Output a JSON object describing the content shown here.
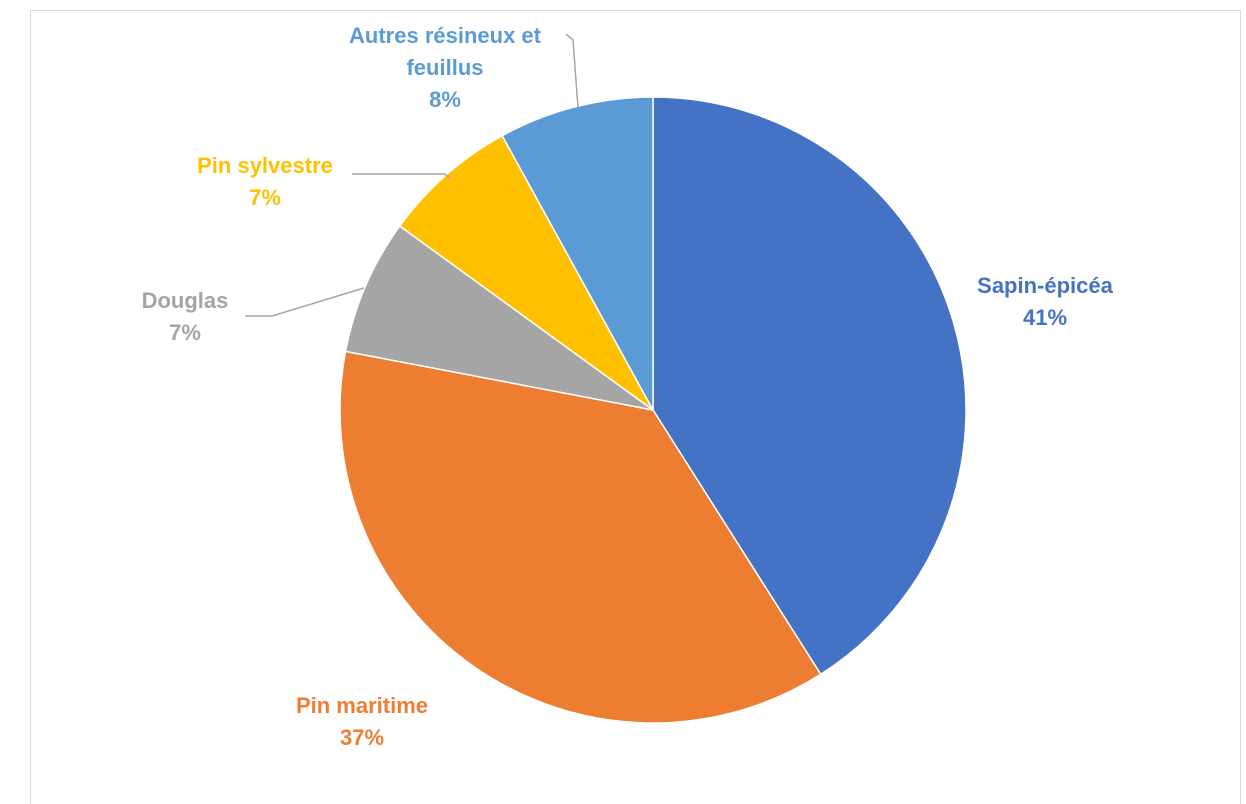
{
  "chart_data": {
    "type": "pie",
    "categories": [
      "Sapin-épicéa",
      "Pin maritime",
      "Douglas",
      "Pin sylvestre",
      "Autres résineux et feuillus"
    ],
    "values": [
      41,
      37,
      7,
      7,
      8
    ],
    "value_labels": [
      "41%",
      "37%",
      "7%",
      "7%",
      "8%"
    ],
    "colors": [
      "#4472c4",
      "#ed7d31",
      "#a5a5a5",
      "#ffc000",
      "#5b9bd5"
    ]
  }
}
